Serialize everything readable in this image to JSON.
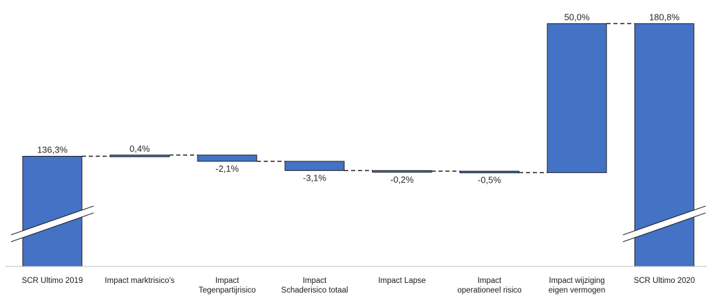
{
  "chart_data": {
    "type": "bar",
    "subtype": "waterfall",
    "title": "",
    "xlabel": "",
    "ylabel": "",
    "broken_axis_on_totals": true,
    "grid": false,
    "bar_color": "#4472C4",
    "connector_style": "dashed",
    "categories": [
      [
        "SCR Ultimo 2019"
      ],
      [
        "Impact marktrisico’s"
      ],
      [
        "Impact",
        "Tegenpartijrisico"
      ],
      [
        "Impact",
        "Schaderisico totaal"
      ],
      [
        "Impact Lapse"
      ],
      [
        "Impact",
        "operationeel risico"
      ],
      [
        "Impact wijziging",
        "eigen vermogen"
      ],
      [
        "SCR Ultimo 2020"
      ]
    ],
    "kinds": [
      "total",
      "delta",
      "delta",
      "delta",
      "delta",
      "delta",
      "delta",
      "total"
    ],
    "values": [
      136.3,
      0.4,
      -2.1,
      -3.1,
      -0.2,
      -0.5,
      50.0,
      180.8
    ],
    "value_labels": [
      "136,3%",
      "0,4%",
      "-2,1%",
      "-3,1%",
      "-0,2%",
      "-0,5%",
      "50,0%",
      "180,8%"
    ]
  }
}
